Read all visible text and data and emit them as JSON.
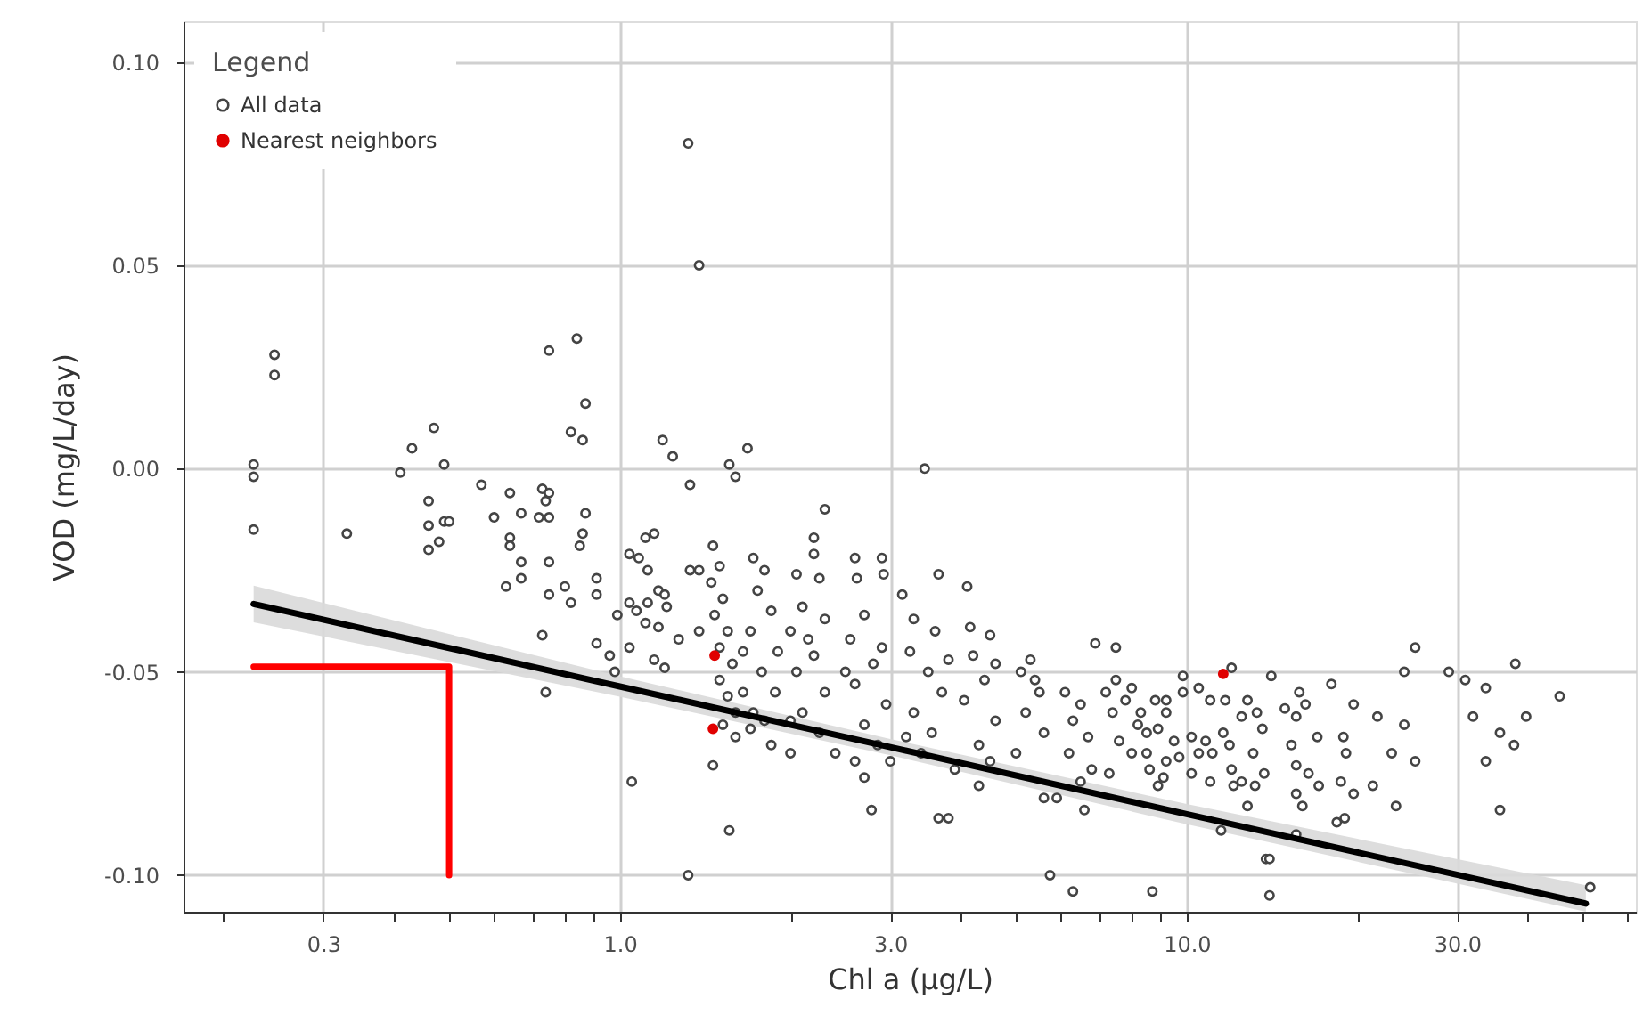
{
  "chart_data": {
    "type": "scatter",
    "xlabel": "Chl a (μg/L)",
    "ylabel": "VOD (mg/L/day)",
    "legend_title": "Legend",
    "log": "x",
    "grid": true,
    "legend": "top left",
    "xlim": [
      0.17,
      62
    ],
    "ylim": [
      -0.109,
      0.11
    ],
    "xticks": [
      {
        "value": 0.2,
        "label": null
      },
      0.3,
      {
        "value": 0.4,
        "label": null
      },
      {
        "value": 0.5,
        "label": null
      },
      {
        "value": 0.6,
        "label": null
      },
      {
        "value": 0.7,
        "label": null
      },
      {
        "value": 0.8,
        "label": null
      },
      {
        "value": 0.9,
        "label": null
      },
      {
        "value": 1,
        "label": "1.0"
      },
      {
        "value": 2,
        "label": null
      },
      {
        "value": 3,
        "label": "3.0"
      },
      {
        "value": 4,
        "label": null
      },
      {
        "value": 5,
        "label": null
      },
      {
        "value": 6,
        "label": null
      },
      {
        "value": 7,
        "label": null
      },
      {
        "value": 8,
        "label": null
      },
      {
        "value": 9,
        "label": null
      },
      {
        "value": 10,
        "label": "10.0"
      },
      {
        "value": 20,
        "label": null
      },
      {
        "value": 30,
        "label": "30.0"
      },
      {
        "value": 40,
        "label": null
      },
      {
        "value": 50,
        "label": null
      },
      {
        "value": 60,
        "label": null
      }
    ],
    "yticks": [
      {
        "value": -0.1,
        "label": "-0.10"
      },
      {
        "value": -0.05,
        "label": "-0.05"
      },
      {
        "value": 0,
        "label": "0.00"
      },
      {
        "value": 0.05,
        "label": "0.05"
      },
      {
        "value": 0.1,
        "label": "0.10"
      }
    ],
    "series": [
      {
        "name": "All data",
        "marker": "circle",
        "color": "#444444",
        "x": [
          0.226,
          0.226,
          0.226,
          0.246,
          0.246,
          0.33,
          0.43,
          0.41,
          0.47,
          0.49,
          0.46,
          0.46,
          0.49,
          0.5,
          0.48,
          0.46,
          0.57,
          0.6,
          0.64,
          0.64,
          0.64,
          0.63,
          0.67,
          0.67,
          0.67,
          0.72,
          0.73,
          0.75,
          0.74,
          0.75,
          0.75,
          0.75,
          0.73,
          0.74,
          0.75,
          0.84,
          0.87,
          0.82,
          0.86,
          0.8,
          0.82,
          0.87,
          0.86,
          0.85,
          0.91,
          0.91,
          0.91,
          0.96,
          0.98,
          0.99,
          1.04,
          1.08,
          1.11,
          1.15,
          1.12,
          1.17,
          1.04,
          1.07,
          1.12,
          1.2,
          1.21,
          1.11,
          1.17,
          1.04,
          1.15,
          1.2,
          1.27,
          1.05,
          1.19,
          1.24,
          1.33,
          1.38,
          1.33,
          1.38,
          1.32,
          1.38,
          1.32,
          1.56,
          1.6,
          1.68,
          1.46,
          1.5,
          1.45,
          1.52,
          1.47,
          1.55,
          1.5,
          1.58,
          1.5,
          1.55,
          1.6,
          1.46,
          1.56,
          1.72,
          1.8,
          1.75,
          1.85,
          1.7,
          1.9,
          1.78,
          1.88,
          1.72,
          1.85,
          1.65,
          1.65,
          2.2,
          2.2,
          2.25,
          2.05,
          2.3,
          2.1,
          2.0,
          2.2,
          2.05,
          2.3,
          2.1,
          2.25,
          2.0,
          2.15,
          2.3,
          2.6,
          2.62,
          2.9,
          2.92,
          2.7,
          2.55,
          2.8,
          2.6,
          2.95,
          2.7,
          2.85,
          2.7,
          2.78,
          2.5,
          2.9,
          3.45,
          3.15,
          3.3,
          3.6,
          3.65,
          3.25,
          3.5,
          3.7,
          3.3,
          3.55,
          3.4,
          3.65,
          3.8,
          3.8,
          4.1,
          4.15,
          4.5,
          4.2,
          4.4,
          4.05,
          4.6,
          4.3,
          4.5,
          4.3,
          4.6,
          5.3,
          5.1,
          5.5,
          5.2,
          5.6,
          5.0,
          5.6,
          5.9,
          5.74,
          5.4,
          6.1,
          6.5,
          6.9,
          6.3,
          6.7,
          6.2,
          6.8,
          6.5,
          6.6,
          6.3,
          7.5,
          7.2,
          7.8,
          7.5,
          8.0,
          7.4,
          8.2,
          7.6,
          8.0,
          7.3,
          8.7,
          8.3,
          8.5,
          8.5,
          8.6,
          8.8,
          8.9,
          8.9,
          9.1,
          9.2,
          9.2,
          9.2,
          9.5,
          9.7,
          9.85,
          9.85,
          10.2,
          10.2,
          10.5,
          10.5,
          10.8,
          11,
          11,
          11.1,
          11.5,
          11.6,
          11.7,
          11.9,
          12,
          12,
          12.1,
          12.5,
          12.5,
          12.8,
          12.8,
          13.1,
          13.2,
          13.3,
          13.6,
          13.7,
          13.8,
          14,
          14,
          14.1,
          14.9,
          15.3,
          15.6,
          15.6,
          15.6,
          15.6,
          15.8,
          16,
          16.2,
          16.4,
          17,
          17.1,
          18,
          18.4,
          18.7,
          18.9,
          19.1,
          19,
          19.7,
          19.7,
          21.3,
          21.7,
          23,
          23.4,
          24.2,
          24.2,
          25.3,
          25.3,
          29,
          31,
          32,
          33.7,
          33.7,
          35.7,
          35.7,
          37.8,
          38,
          39.7,
          45.5,
          51.5,
          1.6,
          1.7,
          2.0,
          2.4,
          2.6,
          3.0,
          3.2,
          3.9,
          1.52,
          1.8
        ],
        "values": [
          0.001,
          -0.002,
          -0.015,
          0.028,
          0.023,
          -0.016,
          0.005,
          -0.001,
          0.01,
          0.001,
          -0.008,
          -0.014,
          -0.013,
          -0.013,
          -0.018,
          -0.02,
          -0.004,
          -0.012,
          -0.006,
          -0.017,
          -0.019,
          -0.029,
          -0.011,
          -0.023,
          -0.027,
          -0.012,
          -0.005,
          -0.006,
          -0.008,
          -0.012,
          -0.023,
          -0.031,
          -0.041,
          -0.055,
          0.029,
          0.032,
          0.016,
          0.009,
          0.007,
          -0.029,
          -0.033,
          -0.011,
          -0.016,
          -0.019,
          -0.027,
          -0.031,
          -0.043,
          -0.046,
          -0.05,
          -0.036,
          -0.021,
          -0.022,
          -0.017,
          -0.016,
          -0.025,
          -0.03,
          -0.033,
          -0.035,
          -0.033,
          -0.031,
          -0.034,
          -0.038,
          -0.039,
          -0.044,
          -0.047,
          -0.049,
          -0.042,
          -0.077,
          0.007,
          0.003,
          -0.004,
          -0.025,
          -0.025,
          -0.04,
          0.08,
          0.05,
          -0.1,
          0.001,
          -0.002,
          0.005,
          -0.019,
          -0.024,
          -0.028,
          -0.032,
          -0.036,
          -0.04,
          -0.044,
          -0.048,
          -0.052,
          -0.056,
          -0.06,
          -0.073,
          -0.089,
          -0.022,
          -0.025,
          -0.03,
          -0.035,
          -0.04,
          -0.045,
          -0.05,
          -0.055,
          -0.06,
          -0.068,
          -0.045,
          -0.055,
          -0.017,
          -0.021,
          -0.027,
          -0.026,
          -0.01,
          -0.034,
          -0.04,
          -0.046,
          -0.05,
          -0.055,
          -0.06,
          -0.065,
          -0.07,
          -0.042,
          -0.037,
          -0.022,
          -0.027,
          -0.022,
          -0.026,
          -0.036,
          -0.042,
          -0.048,
          -0.053,
          -0.058,
          -0.063,
          -0.068,
          -0.076,
          -0.084,
          -0.05,
          -0.044,
          0.0,
          -0.031,
          -0.037,
          -0.04,
          -0.026,
          -0.045,
          -0.05,
          -0.055,
          -0.06,
          -0.065,
          -0.07,
          -0.086,
          -0.086,
          -0.047,
          -0.029,
          -0.039,
          -0.041,
          -0.046,
          -0.052,
          -0.057,
          -0.062,
          -0.068,
          -0.072,
          -0.078,
          -0.048,
          -0.047,
          -0.05,
          -0.055,
          -0.06,
          -0.065,
          -0.07,
          -0.081,
          -0.081,
          -0.1,
          -0.052,
          -0.055,
          -0.058,
          -0.043,
          -0.062,
          -0.066,
          -0.07,
          -0.074,
          -0.077,
          -0.084,
          -0.104,
          -0.044,
          -0.055,
          -0.057,
          -0.052,
          -0.054,
          -0.06,
          -0.063,
          -0.067,
          -0.07,
          -0.075,
          -0.104,
          -0.06,
          -0.065,
          -0.07,
          -0.074,
          -0.057,
          -0.064,
          -0.078,
          -0.076,
          -0.072,
          -0.06,
          -0.057,
          -0.067,
          -0.071,
          -0.055,
          -0.051,
          -0.066,
          -0.075,
          -0.054,
          -0.07,
          -0.067,
          -0.057,
          -0.077,
          -0.07,
          -0.089,
          -0.065,
          -0.057,
          -0.068,
          -0.049,
          -0.074,
          -0.078,
          -0.077,
          -0.061,
          -0.057,
          -0.083,
          -0.07,
          -0.078,
          -0.06,
          -0.064,
          -0.075,
          -0.096,
          -0.096,
          -0.105,
          -0.051,
          -0.059,
          -0.068,
          -0.061,
          -0.073,
          -0.08,
          -0.09,
          -0.055,
          -0.083,
          -0.058,
          -0.075,
          -0.066,
          -0.078,
          -0.053,
          -0.087,
          -0.077,
          -0.066,
          -0.07,
          -0.086,
          -0.08,
          -0.058,
          -0.078,
          -0.061,
          -0.07,
          -0.083,
          -0.05,
          -0.063,
          -0.044,
          -0.072,
          -0.05,
          -0.052,
          -0.061,
          -0.054,
          -0.072,
          -0.065,
          -0.084,
          -0.068,
          -0.048,
          -0.061,
          -0.056,
          -0.103,
          -0.066,
          -0.064,
          -0.062,
          -0.07,
          -0.072,
          -0.072,
          -0.066,
          -0.074,
          -0.063,
          -0.062
        ]
      },
      {
        "name": "Nearest neighbors",
        "marker": "circle",
        "color": "#e00000",
        "x": [
          1.47,
          1.46,
          11.6
        ],
        "values": [
          -0.046,
          -0.064,
          -0.0505
        ]
      },
      {
        "type": "line",
        "marker": "none",
        "line_style": "solid",
        "color": "#000000",
        "x": [
          0.226,
          1,
          3,
          10,
          50.6
        ],
        "values": [
          -0.0333,
          -0.0536,
          -0.0685,
          -0.085,
          -0.107
        ],
        "lower": [
          -0.0378,
          -0.0561,
          -0.0705,
          -0.0875,
          -0.109
        ],
        "upper": [
          -0.0288,
          -0.0511,
          -0.0665,
          -0.0825,
          -0.1025
        ]
      },
      {
        "type": "line",
        "marker": "none",
        "line_style": "solid",
        "color": "#ff0000",
        "x": [
          0.226,
          0.5,
          0.5
        ],
        "values": [
          -0.0487,
          -0.0487,
          -0.1
        ]
      }
    ]
  }
}
